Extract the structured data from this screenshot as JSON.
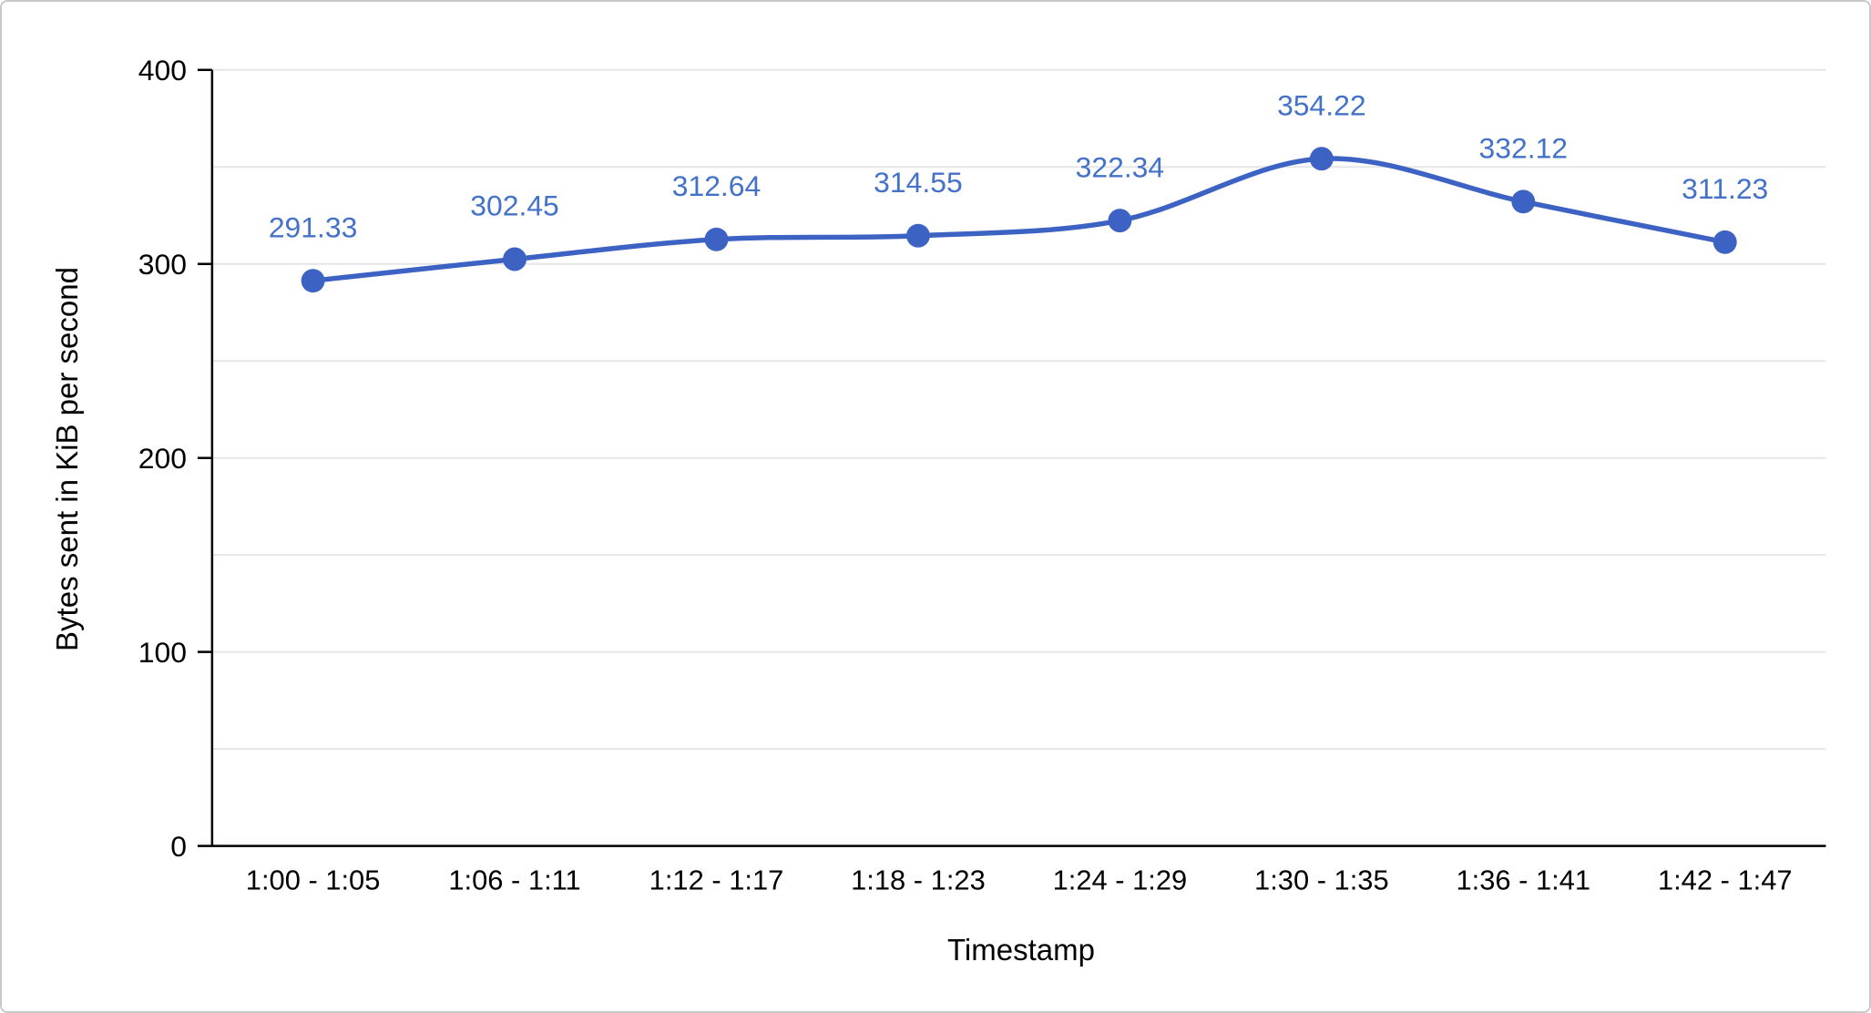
{
  "chart_data": {
    "type": "line",
    "categories": [
      "1:00 - 1:05",
      "1:06 - 1:11",
      "1:12 - 1:17",
      "1:18 - 1:23",
      "1:24 - 1:29",
      "1:30 - 1:35",
      "1:36 - 1:41",
      "1:42 - 1:47"
    ],
    "values": [
      291.33,
      302.45,
      312.64,
      314.55,
      322.34,
      354.22,
      332.12,
      311.23
    ],
    "title": "",
    "xlabel": "Timestamp",
    "ylabel": "Bytes sent in KiB per second",
    "ylim": [
      0,
      400
    ],
    "yticks": [
      0,
      100,
      200,
      300,
      400
    ],
    "grid_step": 50,
    "grid": true,
    "legend": "none",
    "data_labels_visible": true,
    "colors": {
      "series": "#3c62c3",
      "data_label": "#4472c8",
      "grid": "#e6e6e6",
      "axis": "#000000",
      "tick_text": "#000000",
      "axis_title_text": "#000000",
      "background": "#ffffff",
      "page_border": "#c9c9c9"
    }
  }
}
